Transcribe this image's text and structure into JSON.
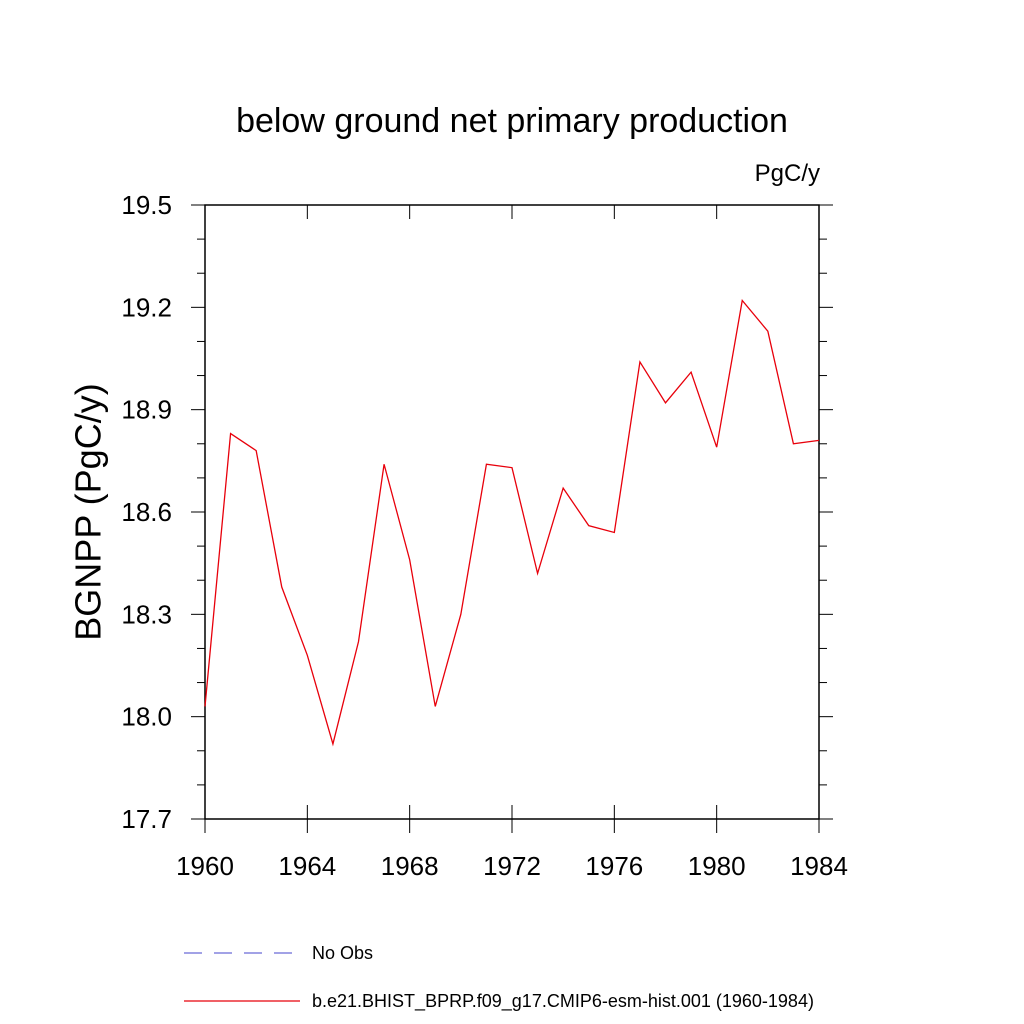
{
  "chart_data": {
    "type": "line",
    "title": "below ground net primary production",
    "units": "PgC/y",
    "xlabel": "",
    "ylabel": "BGNPP  (PgC/y)",
    "xlim": [
      1960,
      1984
    ],
    "ylim": [
      17.7,
      19.5
    ],
    "xticks": [
      1960,
      1964,
      1968,
      1972,
      1976,
      1980,
      1984
    ],
    "xtick_labels": [
      "1960",
      "1964",
      "1968",
      "1972",
      "1976",
      "1980",
      "1984"
    ],
    "yticks": [
      17.7,
      18.0,
      18.3,
      18.6,
      18.9,
      19.2,
      19.5
    ],
    "ytick_labels": [
      "17.7",
      "18.0",
      "18.3",
      "18.6",
      "18.9",
      "19.2",
      "19.5"
    ],
    "grid": false,
    "legend_position": "bottom",
    "series": [
      {
        "name": "b.e21.BHIST_BPRP.f09_g17.CMIP6-esm-hist.001 (1960-1984)",
        "color": "#e8000b",
        "style": "solid",
        "x": [
          1960,
          1961,
          1962,
          1963,
          1964,
          1965,
          1966,
          1967,
          1968,
          1969,
          1970,
          1971,
          1972,
          1973,
          1974,
          1975,
          1976,
          1977,
          1978,
          1979,
          1980,
          1981,
          1982,
          1983,
          1984
        ],
        "values": [
          18.03,
          18.83,
          18.78,
          18.38,
          18.18,
          17.92,
          18.22,
          18.74,
          18.46,
          18.03,
          18.3,
          18.74,
          18.73,
          18.42,
          18.67,
          18.56,
          18.54,
          19.04,
          18.92,
          19.01,
          18.79,
          19.22,
          19.13,
          18.8,
          18.81
        ]
      }
    ],
    "legend": [
      {
        "label": "No Obs",
        "color": "#6b6bd6",
        "style": "dashed"
      },
      {
        "label": "b.e21.BHIST_BPRP.f09_g17.CMIP6-esm-hist.001 (1960-1984)",
        "color": "#e8000b",
        "style": "solid"
      }
    ]
  }
}
